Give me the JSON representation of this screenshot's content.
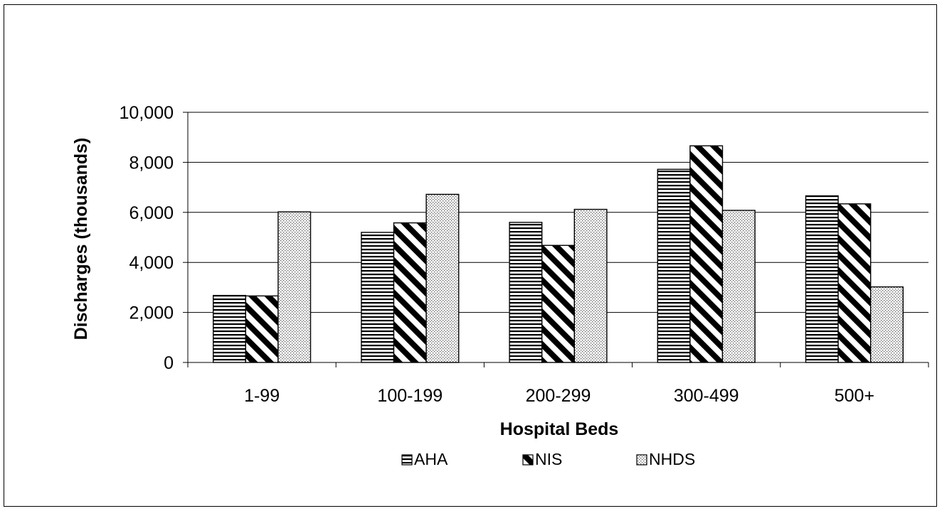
{
  "chart_data": {
    "type": "bar",
    "title": "",
    "xlabel": "Hospital Beds",
    "ylabel": "Discharges (thousands)",
    "categories": [
      "1-99",
      "100-199",
      "200-299",
      "300-499",
      "500+"
    ],
    "ylim": [
      0,
      10000
    ],
    "yticks": [
      0,
      2000,
      4000,
      6000,
      8000,
      10000
    ],
    "ytick_labels": [
      "0",
      "2,000",
      "4,000",
      "6,000",
      "8,000",
      "10,000"
    ],
    "grid": "horizontal",
    "legend_position": "bottom",
    "series": [
      {
        "name": "AHA",
        "pattern": "horizontal-lines",
        "values": [
          2680,
          5200,
          5600,
          7720,
          6660
        ]
      },
      {
        "name": "NIS",
        "pattern": "diagonal-stripes",
        "values": [
          2660,
          5580,
          4680,
          8660,
          6340
        ]
      },
      {
        "name": "NHDS",
        "pattern": "dots",
        "values": [
          6020,
          6720,
          6120,
          6080,
          3020
        ]
      }
    ]
  }
}
